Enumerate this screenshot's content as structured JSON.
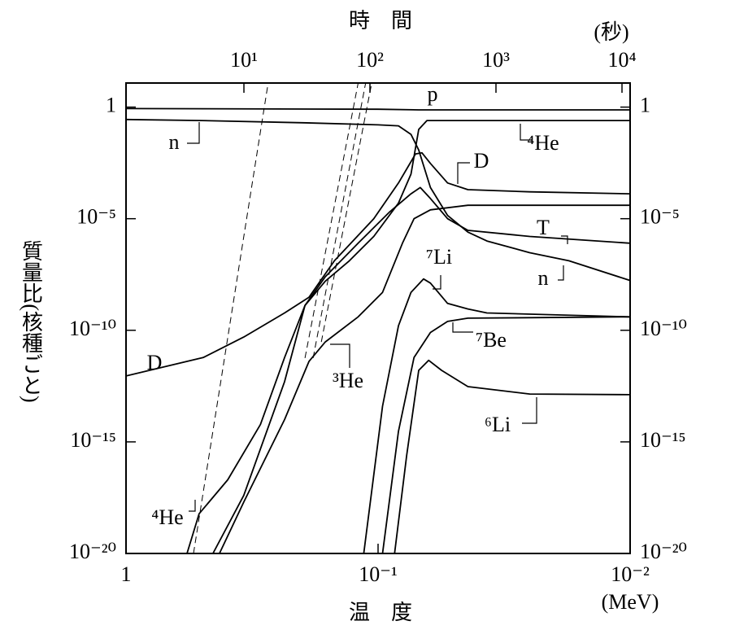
{
  "chart_data": {
    "type": "line",
    "title": "時　間",
    "x2_unit": "(秒)",
    "xlabel": "温　度",
    "x_unit": "(MeV)",
    "ylabel": "質量比(核種ごと)",
    "xscale": "log",
    "yscale": "log",
    "xlim": [
      1,
      0.01
    ],
    "xticks": [
      1,
      {
        "value": 0.1,
        "label": "10⁻¹"
      },
      {
        "value": 0.01,
        "label": "10⁻²"
      }
    ],
    "x2lim": [
      1.16,
      11600
    ],
    "x2ticks": [
      {
        "value": 10,
        "label": "10¹"
      },
      {
        "value": 100,
        "label": "10²"
      },
      {
        "value": 1000,
        "label": "10³"
      },
      {
        "value": 10000,
        "label": "10⁴"
      }
    ],
    "ylim": [
      1e-20,
      12
    ],
    "yticks": [
      1,
      {
        "value": 1e-05,
        "label": "10⁻⁵"
      },
      {
        "value": 1e-10,
        "label": "10⁻¹⁰"
      },
      {
        "value": 1e-15,
        "label": "10⁻¹⁵"
      },
      {
        "value": 1e-20,
        "label": "10⁻²⁰"
      }
    ],
    "y2lim": [
      1e-20,
      12
    ],
    "y2ticks": [
      1,
      {
        "value": 1e-05,
        "label": "10⁻⁵"
      },
      {
        "value": 1e-10,
        "label": "10⁻¹⁰"
      },
      {
        "value": 1e-15,
        "label": "10⁻¹⁵"
      },
      {
        "value": 1e-20,
        "label": "10⁻²⁰"
      }
    ],
    "series": [
      {
        "name": "p",
        "color": "#000000",
        "x": [
          1,
          0.1,
          0.069,
          0.01
        ],
        "values": [
          0.86,
          0.8,
          0.75,
          0.75
        ]
      },
      {
        "name": "n",
        "color": "#000000",
        "x": [
          1,
          0.5,
          0.2,
          0.1,
          0.083,
          0.074,
          0.069,
          0.062,
          0.053,
          0.044,
          0.037,
          0.025,
          0.0175,
          0.01
        ],
        "values": [
          0.28,
          0.25,
          0.2,
          0.16,
          0.145,
          0.06,
          0.012,
          0.00025,
          1.4e-05,
          2.5e-06,
          1e-06,
          3e-07,
          1.3e-07,
          1.7e-08
        ]
      },
      {
        "name": "⁴He",
        "color": "#000000",
        "x": [
          0.573,
          0.513,
          0.395,
          0.293,
          0.235,
          0.195,
          0.162,
          0.13,
          0.104,
          0.083,
          0.074,
          0.069,
          0.064,
          0.055,
          0.01
        ],
        "values": [
          1e-20,
          6e-19,
          2e-17,
          6e-15,
          6e-12,
          1.3e-09,
          1.6e-08,
          1.3e-07,
          1.6e-06,
          5e-05,
          0.001,
          0.1,
          0.25,
          0.25,
          0.25
        ]
      },
      {
        "name": "D",
        "color": "#000000",
        "x": [
          1,
          0.494,
          0.341,
          0.235,
          0.188,
          0.149,
          0.104,
          0.083,
          0.071,
          0.067,
          0.062,
          0.053,
          0.044,
          0.025,
          0.01
        ],
        "values": [
          9e-13,
          6e-12,
          5e-11,
          6e-10,
          3e-09,
          1.3e-07,
          1e-05,
          0.0004,
          0.008,
          0.009,
          0.003,
          0.0004,
          0.0002,
          0.00016,
          0.00013
        ]
      },
      {
        "name": "T",
        "color": "#000000",
        "x": [
          0.452,
          0.341,
          0.235,
          0.195,
          0.162,
          0.12,
          0.09,
          0.074,
          0.068,
          0.062,
          0.053,
          0.044,
          0.025,
          0.01
        ],
        "values": [
          1e-20,
          4e-18,
          5e-13,
          1.3e-09,
          2.5e-08,
          8e-07,
          2e-05,
          0.00013,
          0.00025,
          8e-05,
          1e-05,
          3e-06,
          1.6e-06,
          8e-07
        ]
      },
      {
        "name": "³He",
        "color": "#000000",
        "x": [
          0.426,
          0.341,
          0.235,
          0.188,
          0.162,
          0.12,
          0.096,
          0.08,
          0.072,
          0.062,
          0.044,
          0.01
        ],
        "values": [
          1e-20,
          2e-18,
          1e-14,
          4e-12,
          3e-11,
          4e-10,
          5e-09,
          8e-07,
          1e-05,
          2.5e-05,
          4e-05,
          4e-05
        ]
      },
      {
        "name": "⁷Li",
        "color": "#000000",
        "x": [
          0.114,
          0.096,
          0.083,
          0.074,
          0.066,
          0.062,
          0.053,
          0.044,
          0.037,
          0.01
        ],
        "values": [
          1e-20,
          4e-14,
          1.6e-10,
          5e-09,
          2e-08,
          1.3e-08,
          1.6e-09,
          9e-10,
          6e-10,
          4e-10
        ]
      },
      {
        "name": "⁷Be",
        "color": "#000000",
        "x": [
          0.096,
          0.083,
          0.072,
          0.062,
          0.053,
          0.044,
          0.01
        ],
        "values": [
          1e-20,
          3e-15,
          6e-12,
          8e-11,
          2.5e-10,
          3.5e-10,
          4e-10
        ]
      },
      {
        "name": "⁶Li",
        "color": "#000000",
        "x": [
          0.086,
          0.077,
          0.069,
          0.063,
          0.056,
          0.044,
          0.025,
          0.01
        ],
        "values": [
          1e-20,
          2.5e-16,
          1.6e-12,
          4.5e-12,
          1.6e-12,
          3e-13,
          1.4e-13,
          1.3e-13
        ]
      }
    ],
    "guides": [
      {
        "x": [
          0.54,
          0.273
        ],
        "values": [
          1e-20,
          12
        ],
        "dashed": true
      },
      {
        "x": [
          0.195,
          0.12
        ],
        "values": [
          5.7e-12,
          12
        ],
        "dashed": true
      },
      {
        "x": [
          0.181,
          0.112
        ],
        "values": [
          5.7e-12,
          12
        ],
        "dashed": true
      },
      {
        "x": [
          0.168,
          0.106
        ],
        "values": [
          3e-11,
          12
        ],
        "dashed": true
      }
    ]
  }
}
